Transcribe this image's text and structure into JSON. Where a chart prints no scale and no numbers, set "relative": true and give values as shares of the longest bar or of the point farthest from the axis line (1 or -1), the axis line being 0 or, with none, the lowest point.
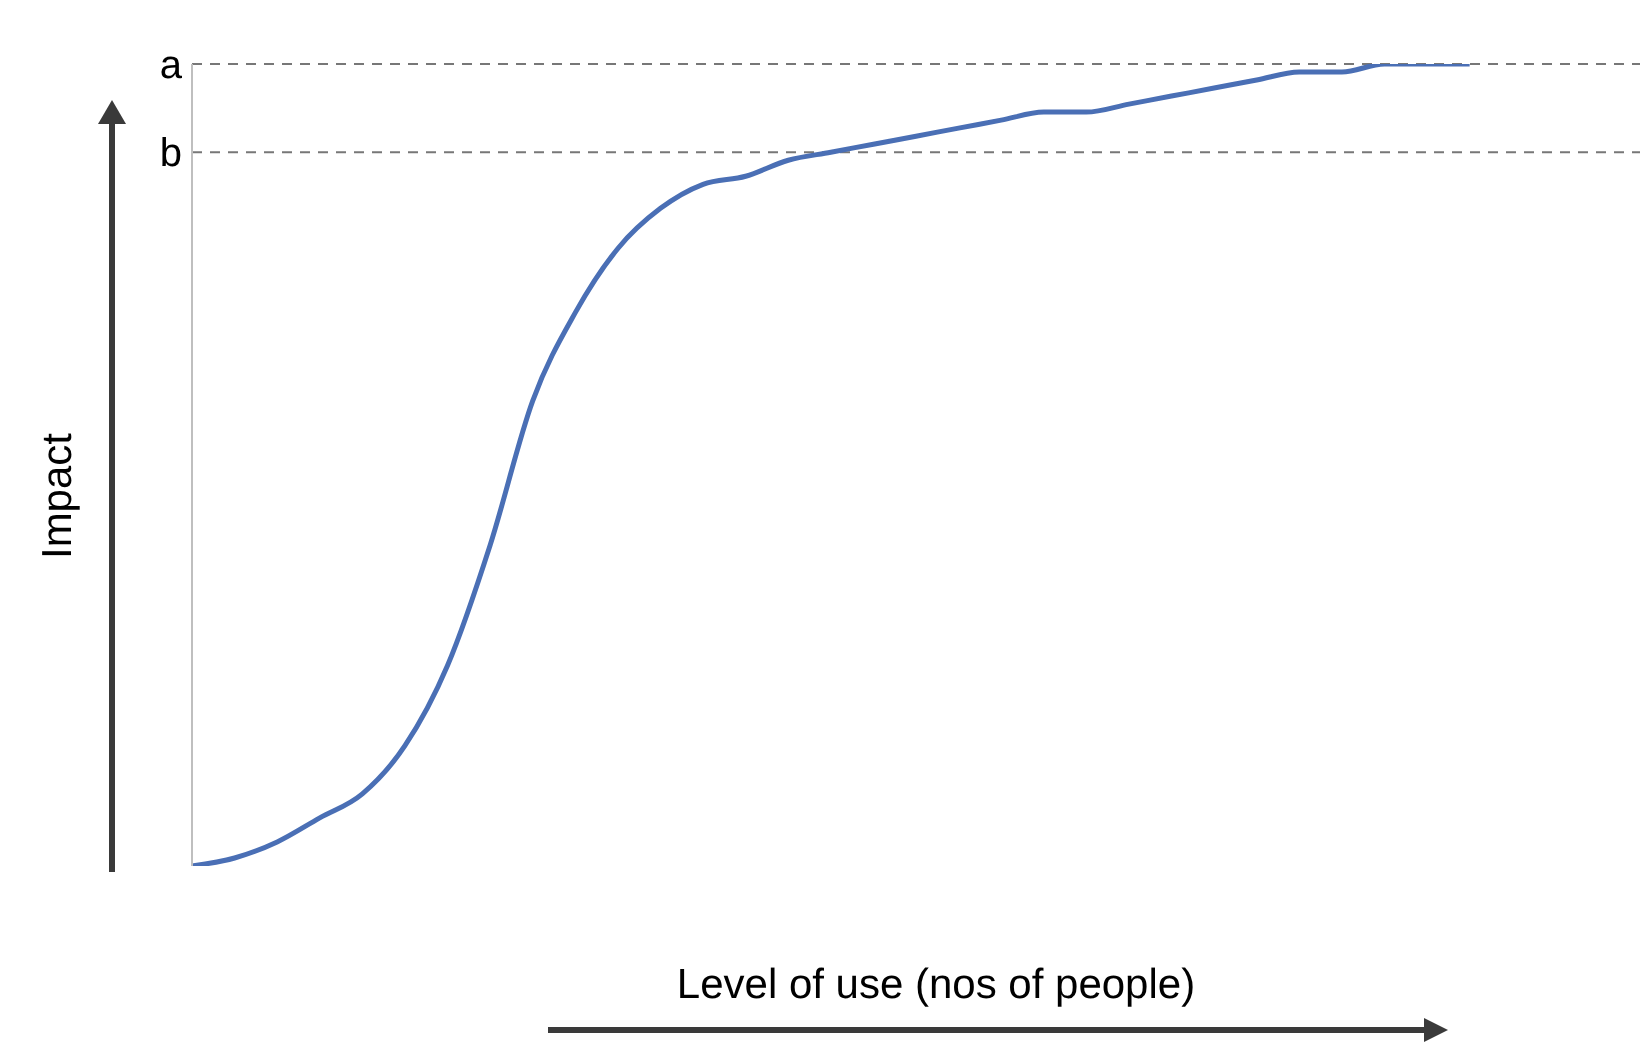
{
  "chart_data": {
    "type": "line",
    "relative": true,
    "xlabel": "Level of use (nos of people)",
    "ylabel": "Impact",
    "line_style": "solid",
    "categories": [
      null,
      null,
      null,
      null,
      null,
      null,
      null,
      null,
      null,
      null,
      null,
      null,
      null,
      null,
      null,
      null,
      null,
      null,
      null,
      null,
      null,
      null,
      null,
      null,
      null,
      null,
      null,
      null,
      null,
      null,
      null,
      null,
      null,
      null,
      null
    ],
    "series": [
      {
        "color": "#4a6fb5",
        "values": [
          0,
          0.01,
          0.03,
          0.06,
          0.09,
          0.15,
          0.25,
          0.4,
          0.58,
          0.69,
          0.77,
          0.82,
          0.85,
          0.86,
          0.88,
          0.89,
          0.9,
          0.91,
          0.92,
          0.93,
          0.94,
          0.94,
          0.95,
          0.96,
          0.97,
          0.98,
          0.99,
          0.99,
          1,
          1,
          1,
          null,
          null,
          null,
          null
        ]
      }
    ],
    "ref_lines": [
      {
        "axis": "y",
        "value": 1,
        "label": "a",
        "color": "#777777",
        "line_style": "dashed"
      },
      {
        "axis": "y",
        "value": 0.89,
        "label": "b",
        "color": "#777777",
        "line_style": "dashed"
      }
    ]
  }
}
